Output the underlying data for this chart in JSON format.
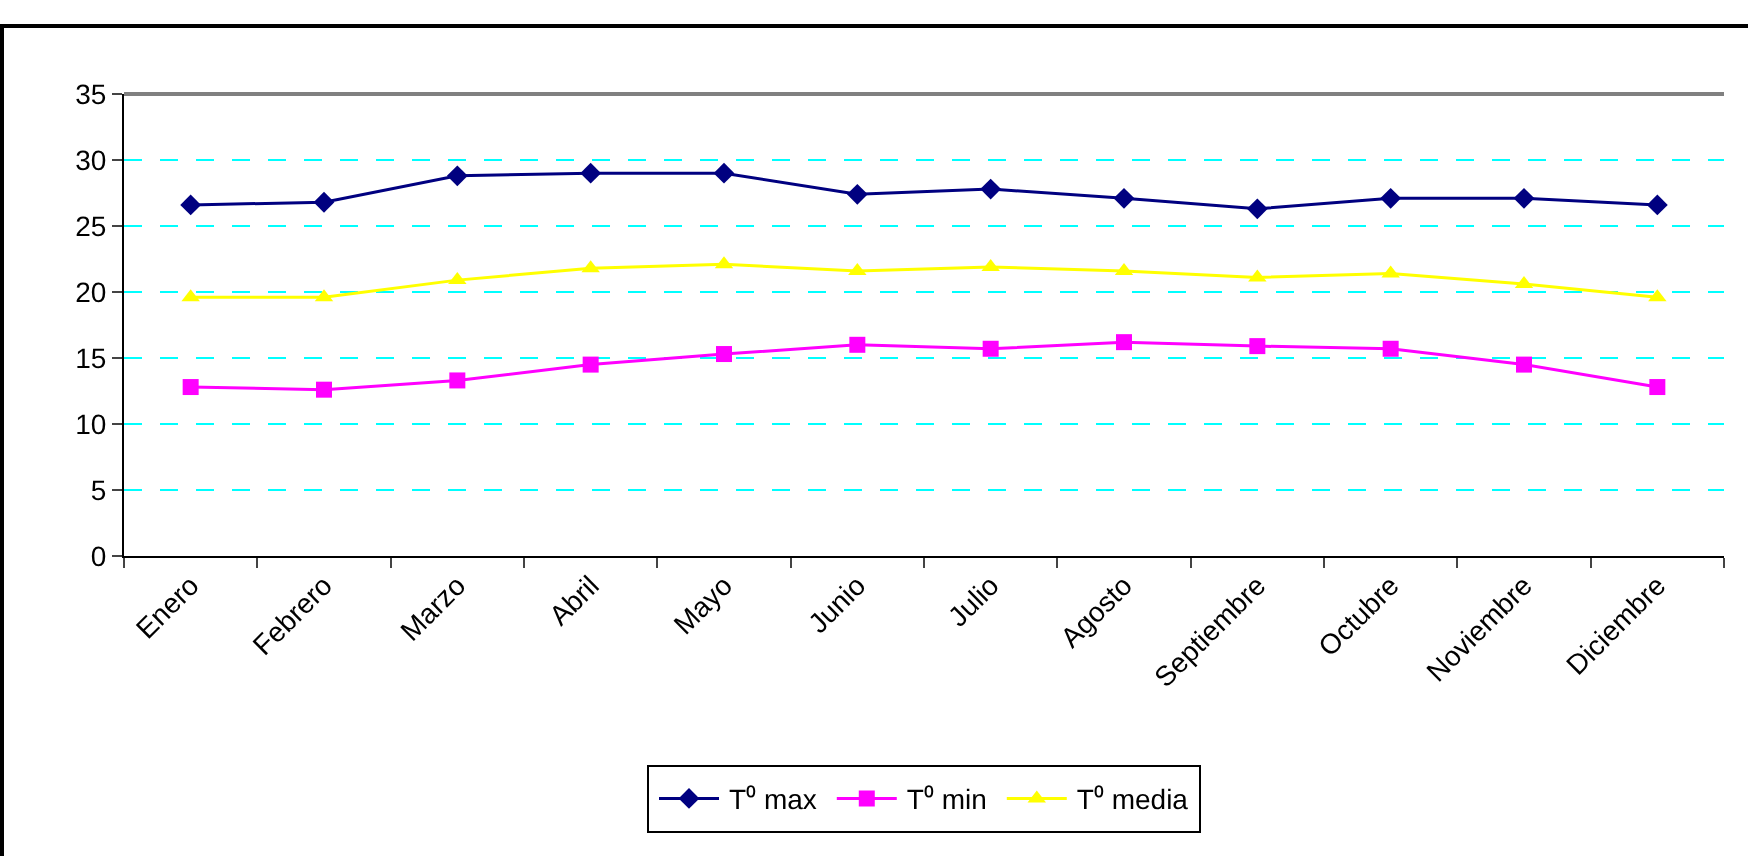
{
  "chart_data": {
    "type": "line",
    "categories": [
      "Enero",
      "Febrero",
      "Marzo",
      "Abril",
      "Mayo",
      "Junio",
      "Julio",
      "Agosto",
      "Septiembre",
      "Octubre",
      "Noviembre",
      "Diciembre"
    ],
    "series": [
      {
        "name": "T⁰ max",
        "color": "#000080",
        "marker": "diamond",
        "values": [
          26.6,
          26.8,
          28.8,
          29.0,
          29.0,
          27.4,
          27.8,
          27.1,
          26.3,
          27.1,
          27.1,
          26.6
        ]
      },
      {
        "name": "T⁰ min",
        "color": "#ff00ff",
        "marker": "square",
        "values": [
          12.8,
          12.6,
          13.3,
          14.5,
          15.3,
          16.0,
          15.7,
          16.2,
          15.9,
          15.7,
          14.5,
          12.8
        ]
      },
      {
        "name": "T⁰ media",
        "color": "#ffff00",
        "marker": "triangle",
        "values": [
          19.6,
          19.6,
          20.9,
          21.8,
          22.1,
          21.6,
          21.9,
          21.6,
          21.1,
          21.4,
          20.6,
          19.6
        ]
      }
    ],
    "ylim": [
      0,
      35
    ],
    "yticks": [
      0,
      5,
      10,
      15,
      20,
      25,
      30,
      35
    ],
    "grid": "y",
    "legend": "bottom",
    "line_style": "solid"
  }
}
